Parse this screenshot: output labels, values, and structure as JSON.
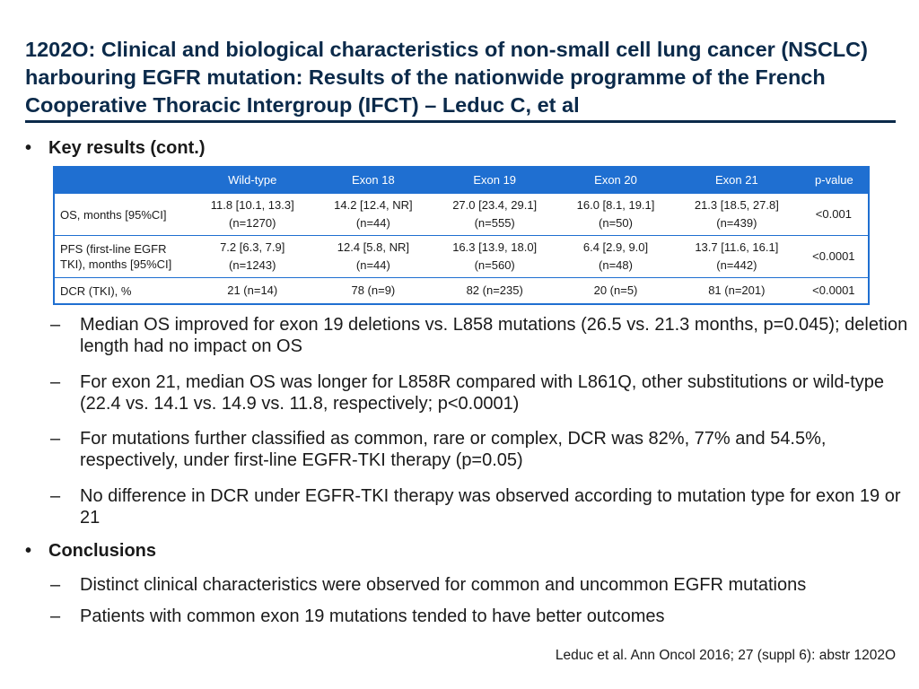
{
  "title": "1202O: Clinical and biological characteristics of non-small cell lung cancer (NSCLC) harbouring EGFR mutation: Results of the nationwide programme of the French Cooperative Thoracic Intergroup (IFCT) – Leduc C, et al",
  "bullet_glyph": "•",
  "dash_glyph": "–",
  "key_results_heading": "Key results (cont.)",
  "table": {
    "headers": [
      "",
      "Wild-type",
      "Exon 18",
      "Exon 19",
      "Exon 20",
      "Exon 21",
      "p-value"
    ],
    "rows": [
      {
        "label": "OS, months [95%CI]",
        "cells": [
          {
            "main": "11.8 [10.1, 13.3]",
            "sub": "(n=1270)"
          },
          {
            "main": "14.2 [12.4, NR]",
            "sub": "(n=44)"
          },
          {
            "main": "27.0 [23.4, 29.1]",
            "sub": "(n=555)"
          },
          {
            "main": "16.0 [8.1, 19.1]",
            "sub": "(n=50)"
          },
          {
            "main": "21.3 [18.5, 27.8]",
            "sub": "(n=439)"
          }
        ],
        "pvalue": "<0.001"
      },
      {
        "label": "PFS (first-line EGFR TKI), months [95%CI]",
        "cells": [
          {
            "main": "7.2 [6.3, 7.9]",
            "sub": "(n=1243)"
          },
          {
            "main": "12.4 [5.8, NR]",
            "sub": "(n=44)"
          },
          {
            "main": "16.3 [13.9, 18.0]",
            "sub": "(n=560)"
          },
          {
            "main": "6.4 [2.9, 9.0]",
            "sub": "(n=48)"
          },
          {
            "main": "13.7 [11.6, 16.1]",
            "sub": "(n=442)"
          }
        ],
        "pvalue": "<0.0001"
      },
      {
        "label": "DCR (TKI), %",
        "cells": [
          {
            "main": "21 (n=14)",
            "sub": ""
          },
          {
            "main": "78 (n=9)",
            "sub": ""
          },
          {
            "main": "82 (n=235)",
            "sub": ""
          },
          {
            "main": "20 (n=5)",
            "sub": ""
          },
          {
            "main": "81 (n=201)",
            "sub": ""
          }
        ],
        "pvalue": "<0.0001"
      }
    ]
  },
  "key_results_points": [
    "Median OS improved for exon 19 deletions vs. L858 mutations (26.5 vs. 21.3 months, p=0.045); deletion length had no impact on OS",
    "For exon 21, median OS was longer for L858R compared with L861Q, other substitutions or wild-type (22.4 vs. 14.1 vs. 14.9 vs. 11.8, respectively; p<0.0001)",
    "For mutations further classified as common, rare or complex, DCR was 82%, 77% and 54.5%, respectively, under first-line EGFR-TKI therapy (p=0.05)",
    "No difference in DCR under EGFR-TKI therapy was observed according to mutation type for exon 19 or 21"
  ],
  "conclusions_heading": "Conclusions",
  "conclusion_points": [
    "Distinct clinical characteristics were observed for common and uncommon EGFR mutations",
    "Patients with common exon 19 mutations tended to have better outcomes"
  ],
  "reference": "Leduc et al. Ann Oncol 2016; 27 (suppl 6): abstr 1202O",
  "colors": {
    "title": "#0b2a4a",
    "table_header": "#1f6fd1",
    "table_border": "#1f6fd1"
  }
}
